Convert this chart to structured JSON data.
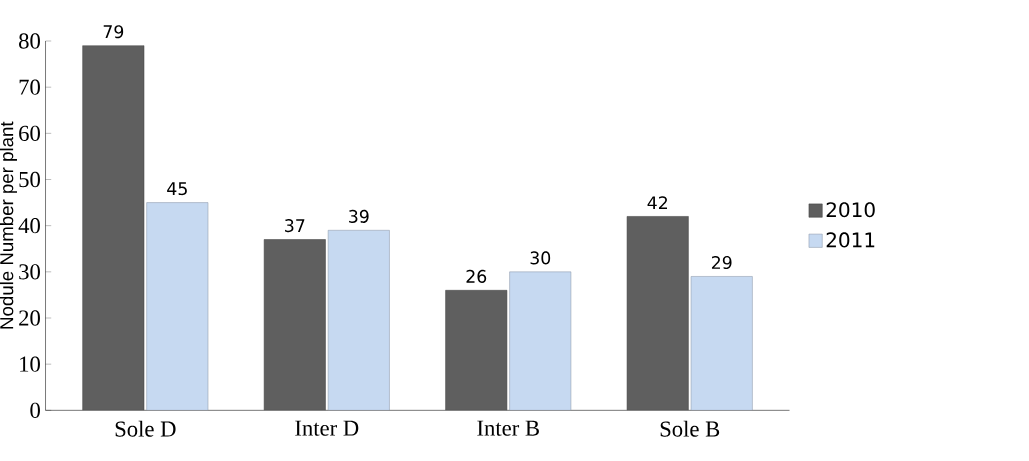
{
  "chart_data": {
    "type": "bar",
    "ylabel": "Nodule Number per plant",
    "categories": [
      "Sole D",
      "Inter D",
      "Inter B",
      "Sole B"
    ],
    "series": [
      {
        "name": "2010",
        "color": "#5f5f5f",
        "values": [
          79,
          37,
          26,
          42
        ]
      },
      {
        "name": "2011",
        "color": "#c6d9f1",
        "values": [
          45,
          39,
          30,
          29
        ]
      }
    ],
    "ylim": [
      0,
      80
    ],
    "yticks": [
      0,
      10,
      20,
      30,
      40,
      50,
      60,
      70,
      80
    ],
    "data_labels": true,
    "legend": "right",
    "grid": false
  }
}
